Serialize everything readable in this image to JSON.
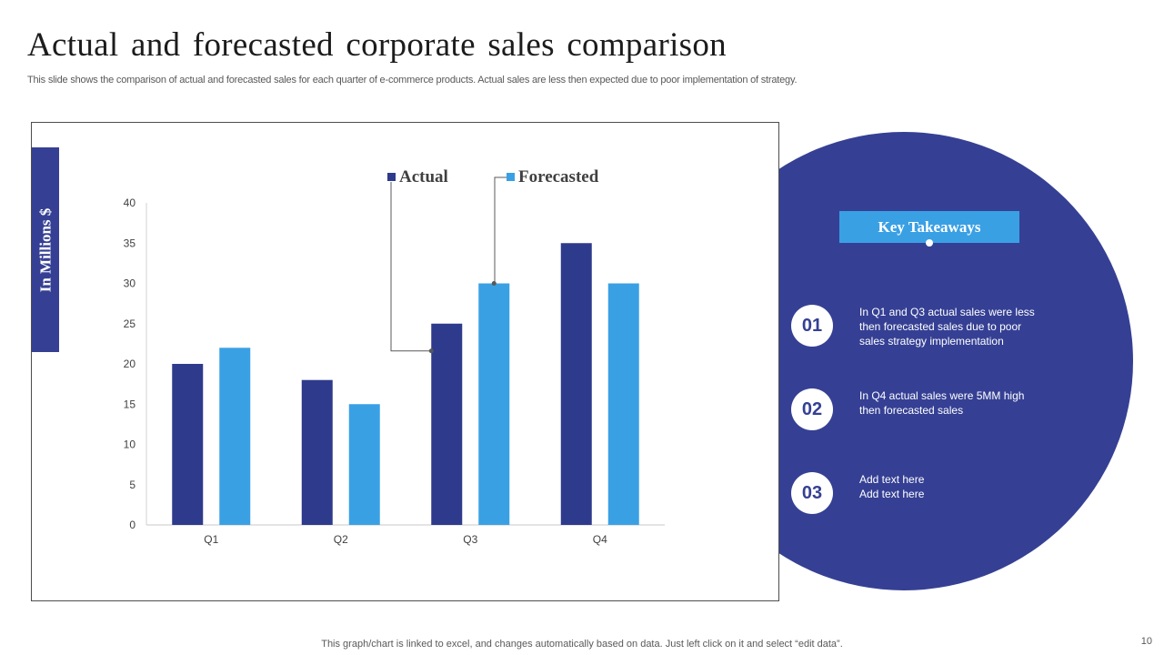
{
  "slide": {
    "title": "Actual and forecasted corporate sales comparison",
    "subtitle": "This slide shows the comparison of actual and forecasted sales for each quarter of e-commerce products. Actual sales are less then expected due to poor implementation of strategy.",
    "footer": "This graph/chart is linked to excel,  and changes automatically based on data. Just left click on it and select “edit data”.",
    "page_number": "10"
  },
  "colors": {
    "actual": "#2e3a8c",
    "forecasted": "#3aa0e4",
    "circle": "#354094"
  },
  "chart_data": {
    "type": "bar",
    "title": "",
    "xlabel": "",
    "ylabel": "In Millions $",
    "categories": [
      "Q1",
      "Q2",
      "Q3",
      "Q4"
    ],
    "series": [
      {
        "name": "Actual",
        "values": [
          20,
          18,
          25,
          35
        ]
      },
      {
        "name": "Forecasted",
        "values": [
          22,
          15,
          30,
          30
        ]
      }
    ],
    "ylim": [
      0,
      40
    ],
    "yticks": [
      0,
      5,
      10,
      15,
      20,
      25,
      30,
      35,
      40
    ],
    "legend_position": "top"
  },
  "takeaways": {
    "heading": "Key Takeaways",
    "items": [
      {
        "number": "01",
        "lines": [
          "In Q1 and Q3 actual sales were less",
          "then forecasted  sales due to poor",
          "sales strategy implementation"
        ]
      },
      {
        "number": "02",
        "lines": [
          "In Q4 actual sales were 5MM high",
          "then forecasted  sales"
        ]
      },
      {
        "number": "03",
        "lines": [
          "Add text here",
          "Add text here"
        ]
      }
    ]
  }
}
